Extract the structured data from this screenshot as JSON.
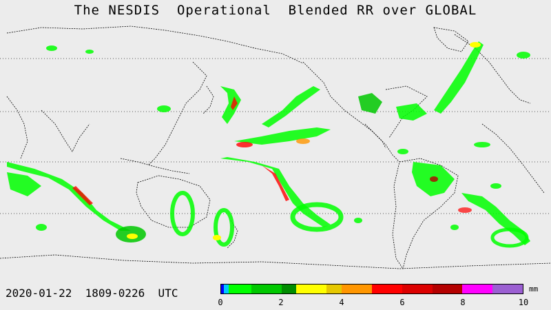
{
  "title": "The NESDIS  Operational  Blended RR over GLOBAL",
  "datetime": "2020-01-22  1809-0226  UTC",
  "colorbar": {
    "unit": "mm",
    "range": [
      0,
      10
    ],
    "tick_labels": [
      "0",
      "2",
      "4",
      "6",
      "8",
      "10"
    ],
    "tick_values": [
      0,
      2,
      4,
      6,
      8,
      10
    ],
    "segments": [
      {
        "from": 0.0,
        "to": 0.1,
        "color": "#0000ff"
      },
      {
        "from": 0.1,
        "to": 0.25,
        "color": "#00c8ff"
      },
      {
        "from": 0.25,
        "to": 1.0,
        "color": "#00ff00"
      },
      {
        "from": 1.0,
        "to": 2.0,
        "color": "#00c800"
      },
      {
        "from": 2.0,
        "to": 2.5,
        "color": "#008c00"
      },
      {
        "from": 2.5,
        "to": 3.5,
        "color": "#ffff00"
      },
      {
        "from": 3.5,
        "to": 4.0,
        "color": "#e6c800"
      },
      {
        "from": 4.0,
        "to": 5.0,
        "color": "#ff9600"
      },
      {
        "from": 5.0,
        "to": 6.0,
        "color": "#ff0000"
      },
      {
        "from": 6.0,
        "to": 7.0,
        "color": "#dc0000"
      },
      {
        "from": 7.0,
        "to": 8.0,
        "color": "#b40000"
      },
      {
        "from": 8.0,
        "to": 9.0,
        "color": "#ff00ff"
      },
      {
        "from": 9.0,
        "to": 10.0,
        "color": "#9b5fd2"
      }
    ]
  },
  "map": {
    "background_color": "#ececec",
    "coastline_color": "#000000",
    "rain_low_color": "#00ff00",
    "rain_mid_color": "#00c800",
    "rain_high_color": "#ff0000",
    "gridlines": "dotted latitude lines"
  }
}
